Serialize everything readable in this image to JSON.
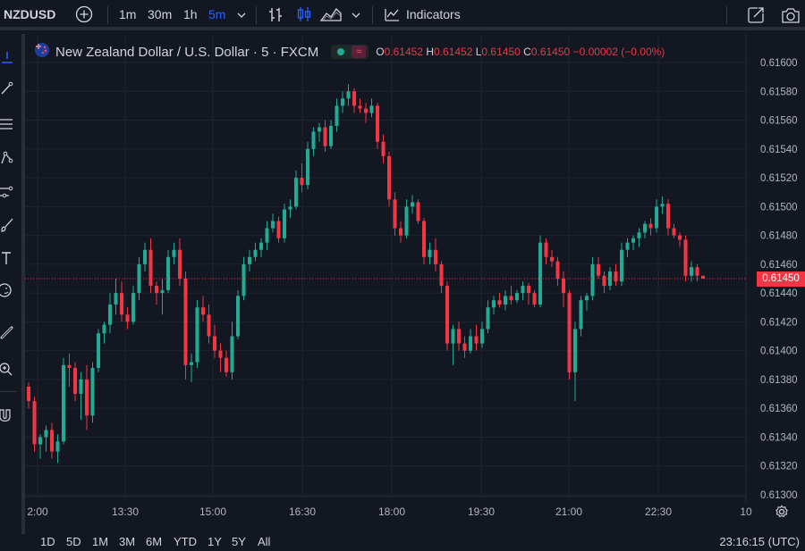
{
  "toolbar": {
    "symbol": "NZDUSD",
    "intervals": [
      "1m",
      "30m",
      "1h",
      "5m"
    ],
    "active_interval": "5m",
    "indicators_label": "Indicators"
  },
  "legend": {
    "title": "New Zealand Dollar / U.S. Dollar · 5 · FXCM",
    "o_label": "O",
    "o": "0.61452",
    "h_label": "H",
    "h": "0.61452",
    "l_label": "L",
    "l": "0.61450",
    "c_label": "C",
    "c": "0.61450",
    "change": "−0.00002 (−0.00%)"
  },
  "last_price": "0.61450",
  "bottom": {
    "ranges": [
      "1D",
      "5D",
      "1M",
      "3M",
      "6M",
      "YTD",
      "1Y",
      "5Y",
      "All"
    ],
    "clock": "23:16:15 (UTC)"
  },
  "colors": {
    "up": "#22ab94",
    "down": "#f23645",
    "bg": "#131722",
    "grid": "#1f2330",
    "accent": "#2962ff"
  },
  "chart_data": {
    "type": "candlestick",
    "y_ticks": [
      "0.61600",
      "0.61580",
      "0.61560",
      "0.61540",
      "0.61520",
      "0.61500",
      "0.61480",
      "0.61460",
      "0.61440",
      "0.61420",
      "0.61400",
      "0.61380",
      "0.61360",
      "0.61340",
      "0.61320",
      "0.61300"
    ],
    "x_ticks": [
      "2:00",
      "13:30",
      "15:00",
      "16:30",
      "18:00",
      "19:30",
      "21:00",
      "22:30",
      "10"
    ],
    "ylim": [
      0.613,
      0.616
    ],
    "last_price": 0.6145,
    "candles": [
      [
        0.61375,
        0.61378,
        0.6136,
        0.61365
      ],
      [
        0.61365,
        0.61368,
        0.6133,
        0.61335
      ],
      [
        0.61335,
        0.61342,
        0.61325,
        0.6134
      ],
      [
        0.6134,
        0.61348,
        0.6133,
        0.61345
      ],
      [
        0.61345,
        0.6135,
        0.61325,
        0.6133
      ],
      [
        0.6133,
        0.61342,
        0.61322,
        0.61337
      ],
      [
        0.61337,
        0.61395,
        0.61335,
        0.6139
      ],
      [
        0.6139,
        0.61398,
        0.61375,
        0.61388
      ],
      [
        0.61388,
        0.61392,
        0.61365,
        0.6137
      ],
      [
        0.6137,
        0.61385,
        0.61352,
        0.6138
      ],
      [
        0.6138,
        0.6139,
        0.61345,
        0.61355
      ],
      [
        0.61355,
        0.61392,
        0.6135,
        0.61388
      ],
      [
        0.61388,
        0.61415,
        0.61385,
        0.61412
      ],
      [
        0.61412,
        0.6142,
        0.61405,
        0.61418
      ],
      [
        0.61418,
        0.6144,
        0.61412,
        0.61432
      ],
      [
        0.61432,
        0.6145,
        0.61425,
        0.6144
      ],
      [
        0.6144,
        0.61448,
        0.6142,
        0.61425
      ],
      [
        0.61425,
        0.6143,
        0.61415,
        0.6142
      ],
      [
        0.6142,
        0.61445,
        0.61418,
        0.6144
      ],
      [
        0.6144,
        0.61465,
        0.61435,
        0.6146
      ],
      [
        0.6146,
        0.61475,
        0.61455,
        0.6147
      ],
      [
        0.6147,
        0.61478,
        0.6144,
        0.61445
      ],
      [
        0.61445,
        0.61448,
        0.61432,
        0.6144
      ],
      [
        0.6144,
        0.6145,
        0.61425,
        0.61442
      ],
      [
        0.61442,
        0.6147,
        0.6144,
        0.61465
      ],
      [
        0.61465,
        0.61475,
        0.6146,
        0.6147
      ],
      [
        0.6147,
        0.61478,
        0.61445,
        0.6145
      ],
      [
        0.6145,
        0.61455,
        0.6138,
        0.6139
      ],
      [
        0.6139,
        0.61398,
        0.61378,
        0.61392
      ],
      [
        0.61392,
        0.61435,
        0.61388,
        0.6143
      ],
      [
        0.6143,
        0.61438,
        0.6142,
        0.61425
      ],
      [
        0.61425,
        0.61432,
        0.61405,
        0.6141
      ],
      [
        0.6141,
        0.61418,
        0.61395,
        0.614
      ],
      [
        0.614,
        0.61405,
        0.61385,
        0.61395
      ],
      [
        0.61395,
        0.614,
        0.61382,
        0.61385
      ],
      [
        0.61385,
        0.6142,
        0.6138,
        0.6141
      ],
      [
        0.6141,
        0.61442,
        0.61408,
        0.61438
      ],
      [
        0.61438,
        0.61465,
        0.61435,
        0.6146
      ],
      [
        0.6146,
        0.6147,
        0.61455,
        0.61465
      ],
      [
        0.61465,
        0.61475,
        0.61462,
        0.6147
      ],
      [
        0.6147,
        0.61478,
        0.61465,
        0.61475
      ],
      [
        0.61475,
        0.6149,
        0.6147,
        0.61485
      ],
      [
        0.61485,
        0.61495,
        0.61482,
        0.6149
      ],
      [
        0.6149,
        0.61493,
        0.61475,
        0.61478
      ],
      [
        0.61478,
        0.61502,
        0.61475,
        0.61498
      ],
      [
        0.61498,
        0.61505,
        0.61492,
        0.615
      ],
      [
        0.615,
        0.61525,
        0.61498,
        0.6152
      ],
      [
        0.6152,
        0.6153,
        0.6151,
        0.61515
      ],
      [
        0.61515,
        0.61545,
        0.61512,
        0.6154
      ],
      [
        0.6154,
        0.61555,
        0.61535,
        0.61552
      ],
      [
        0.61552,
        0.61558,
        0.61545,
        0.61555
      ],
      [
        0.61555,
        0.6156,
        0.61538,
        0.61542
      ],
      [
        0.61542,
        0.6156,
        0.6154,
        0.61556
      ],
      [
        0.61556,
        0.61575,
        0.61552,
        0.6157
      ],
      [
        0.6157,
        0.6158,
        0.61565,
        0.61575
      ],
      [
        0.61575,
        0.61585,
        0.6157,
        0.6158
      ],
      [
        0.6158,
        0.61582,
        0.61565,
        0.6157
      ],
      [
        0.6157,
        0.61575,
        0.61565,
        0.61568
      ],
      [
        0.61568,
        0.61572,
        0.61558,
        0.61565
      ],
      [
        0.61565,
        0.61575,
        0.61562,
        0.6157
      ],
      [
        0.6157,
        0.61572,
        0.6154,
        0.61545
      ],
      [
        0.61545,
        0.6155,
        0.6153,
        0.61535
      ],
      [
        0.61535,
        0.61538,
        0.615,
        0.61505
      ],
      [
        0.61505,
        0.6151,
        0.6148,
        0.61485
      ],
      [
        0.61485,
        0.6149,
        0.61475,
        0.6148
      ],
      [
        0.6148,
        0.61505,
        0.61478,
        0.615
      ],
      [
        0.615,
        0.61508,
        0.61495,
        0.61503
      ],
      [
        0.61503,
        0.61505,
        0.61488,
        0.6149
      ],
      [
        0.6149,
        0.61492,
        0.6146,
        0.61465
      ],
      [
        0.61465,
        0.61475,
        0.6146,
        0.6147
      ],
      [
        0.6147,
        0.61478,
        0.61455,
        0.6146
      ],
      [
        0.6146,
        0.61462,
        0.6144,
        0.61445
      ],
      [
        0.61445,
        0.61448,
        0.614,
        0.61405
      ],
      [
        0.61405,
        0.61418,
        0.6139,
        0.61415
      ],
      [
        0.61415,
        0.6142,
        0.614,
        0.61405
      ],
      [
        0.61405,
        0.6141,
        0.61395,
        0.614
      ],
      [
        0.614,
        0.61415,
        0.61398,
        0.6141
      ],
      [
        0.6141,
        0.61418,
        0.614,
        0.61405
      ],
      [
        0.61405,
        0.6142,
        0.61402,
        0.61415
      ],
      [
        0.61415,
        0.61435,
        0.61412,
        0.6143
      ],
      [
        0.6143,
        0.61438,
        0.61425,
        0.61435
      ],
      [
        0.61435,
        0.6144,
        0.6143,
        0.61432
      ],
      [
        0.61432,
        0.61442,
        0.61428,
        0.61438
      ],
      [
        0.61438,
        0.61445,
        0.61432,
        0.61435
      ],
      [
        0.61435,
        0.61442,
        0.61433,
        0.6144
      ],
      [
        0.6144,
        0.61448,
        0.61435,
        0.61445
      ],
      [
        0.61445,
        0.61447,
        0.61432,
        0.6144
      ],
      [
        0.6144,
        0.61442,
        0.6143,
        0.61432
      ],
      [
        0.61432,
        0.6148,
        0.6143,
        0.61475
      ],
      [
        0.61475,
        0.61478,
        0.6146,
        0.61465
      ],
      [
        0.61465,
        0.6147,
        0.61458,
        0.61462
      ],
      [
        0.61462,
        0.61465,
        0.61445,
        0.6145
      ],
      [
        0.6145,
        0.61455,
        0.6143,
        0.6144
      ],
      [
        0.6144,
        0.61442,
        0.6138,
        0.61385
      ],
      [
        0.61385,
        0.6142,
        0.61365,
        0.61415
      ],
      [
        0.61415,
        0.61438,
        0.6141,
        0.61435
      ],
      [
        0.61435,
        0.6144,
        0.61428,
        0.61438
      ],
      [
        0.61438,
        0.61465,
        0.61435,
        0.6146
      ],
      [
        0.6146,
        0.61465,
        0.6145,
        0.61452
      ],
      [
        0.61452,
        0.61455,
        0.6144,
        0.61445
      ],
      [
        0.61445,
        0.61458,
        0.61442,
        0.61455
      ],
      [
        0.61455,
        0.6146,
        0.61445,
        0.61448
      ],
      [
        0.61448,
        0.61475,
        0.61445,
        0.6147
      ],
      [
        0.6147,
        0.61478,
        0.61465,
        0.61475
      ],
      [
        0.61475,
        0.6148,
        0.6147,
        0.61478
      ],
      [
        0.61478,
        0.61485,
        0.61472,
        0.61482
      ],
      [
        0.61482,
        0.6149,
        0.61478,
        0.61488
      ],
      [
        0.61488,
        0.61492,
        0.6148,
        0.61485
      ],
      [
        0.61485,
        0.61505,
        0.61482,
        0.615
      ],
      [
        0.615,
        0.61507,
        0.61495,
        0.61502
      ],
      [
        0.61502,
        0.61505,
        0.6148,
        0.61485
      ],
      [
        0.61485,
        0.61488,
        0.61478,
        0.6148
      ],
      [
        0.6148,
        0.61482,
        0.61472,
        0.61477
      ],
      [
        0.61477,
        0.6148,
        0.61448,
        0.61452
      ],
      [
        0.61452,
        0.61462,
        0.61448,
        0.61458
      ],
      [
        0.61458,
        0.6146,
        0.61448,
        0.61452
      ],
      [
        0.61452,
        0.61452,
        0.6145,
        0.6145
      ]
    ]
  }
}
